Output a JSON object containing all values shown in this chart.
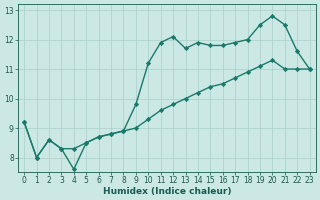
{
  "title": "",
  "xlabel": "Humidex (Indice chaleur)",
  "x_line1": [
    0,
    1,
    2,
    3,
    4,
    5,
    6,
    7,
    8,
    9,
    10,
    11,
    12,
    13,
    14,
    15,
    16,
    17,
    18,
    19,
    20,
    21,
    22,
    23
  ],
  "y_line1": [
    9.2,
    8.0,
    8.6,
    8.3,
    7.6,
    8.5,
    8.7,
    8.8,
    8.9,
    9.8,
    11.2,
    11.9,
    12.1,
    11.7,
    11.9,
    11.8,
    11.8,
    11.9,
    12.0,
    12.5,
    12.8,
    12.5,
    11.6,
    11.0
  ],
  "x_line2": [
    0,
    1,
    2,
    3,
    4,
    5,
    6,
    7,
    8,
    9,
    10,
    11,
    12,
    13,
    14,
    15,
    16,
    17,
    18,
    19,
    20,
    21,
    22,
    23
  ],
  "y_line2": [
    9.2,
    8.0,
    8.6,
    8.3,
    8.3,
    8.5,
    8.7,
    8.8,
    8.9,
    9.0,
    9.3,
    9.6,
    9.8,
    10.0,
    10.2,
    10.4,
    10.5,
    10.7,
    10.9,
    11.1,
    11.3,
    11.0,
    11.0,
    11.0
  ],
  "line_color": "#1a7a6a",
  "bg_color": "#cce8e4",
  "grid_color": "#aacfcb",
  "text_color": "#1a5a50",
  "ylim": [
    7.5,
    13.2
  ],
  "xlim": [
    -0.5,
    23.5
  ],
  "yticks": [
    8,
    9,
    10,
    11,
    12,
    13
  ],
  "xticks": [
    0,
    1,
    2,
    3,
    4,
    5,
    6,
    7,
    8,
    9,
    10,
    11,
    12,
    13,
    14,
    15,
    16,
    17,
    18,
    19,
    20,
    21,
    22,
    23
  ],
  "marker": "D",
  "marker_size": 2.2,
  "line_width": 1.0,
  "axis_fontsize": 6.5,
  "tick_fontsize": 5.5
}
